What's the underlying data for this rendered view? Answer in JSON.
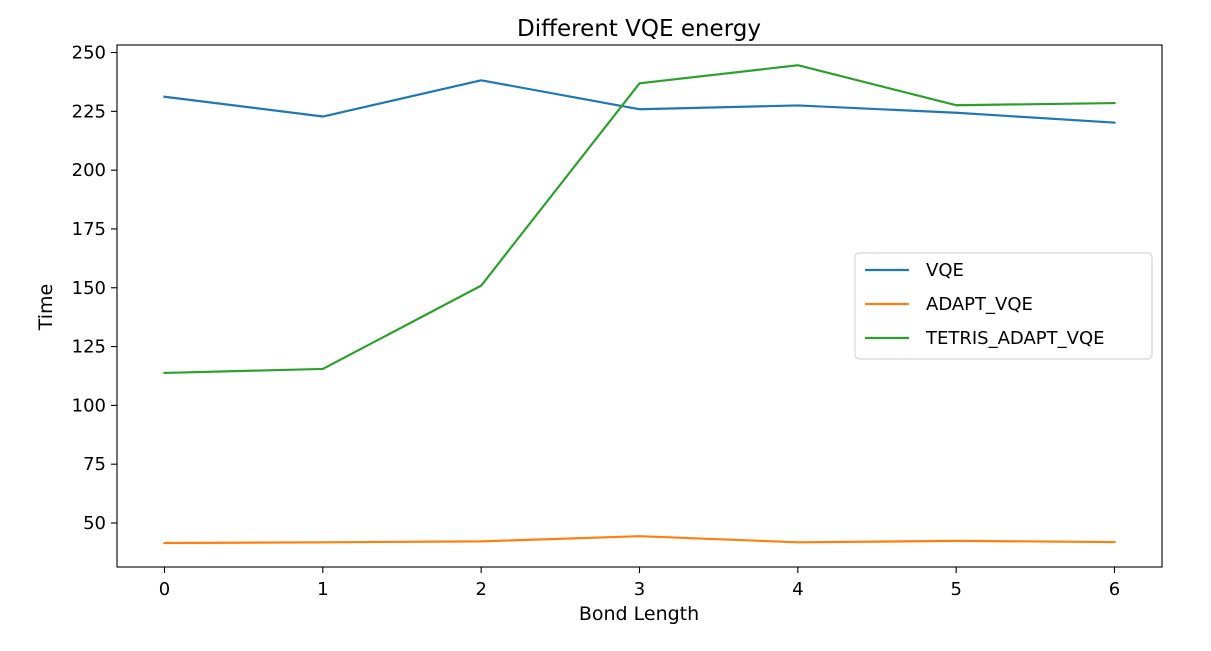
{
  "chart_data": {
    "type": "line",
    "title": "Different VQE energy",
    "xlabel": "Bond Length",
    "ylabel": "Time",
    "x": [
      0,
      1,
      2,
      3,
      4,
      5,
      6
    ],
    "xlim": [
      -0.3,
      6.3
    ],
    "ylim": [
      31.3,
      253.2
    ],
    "xticks": [
      "0",
      "1",
      "2",
      "3",
      "4",
      "5",
      "6"
    ],
    "yticks": [
      "50",
      "75",
      "100",
      "125",
      "150",
      "175",
      "200",
      "225",
      "250"
    ],
    "grid": false,
    "legend_position": "center-right",
    "series": [
      {
        "name": "VQE",
        "color": "#1f77b4",
        "values": [
          231.2,
          222.8,
          238.2,
          225.9,
          227.5,
          224.4,
          220.2
        ]
      },
      {
        "name": "ADAPT_VQE",
        "color": "#ff7f0e",
        "values": [
          41.5,
          41.8,
          42.2,
          44.4,
          41.8,
          42.4,
          41.9
        ]
      },
      {
        "name": "TETRIS_ADAPT_VQE",
        "color": "#2ca02c",
        "values": [
          113.8,
          115.5,
          150.9,
          236.9,
          244.6,
          227.6,
          228.5
        ]
      }
    ]
  }
}
